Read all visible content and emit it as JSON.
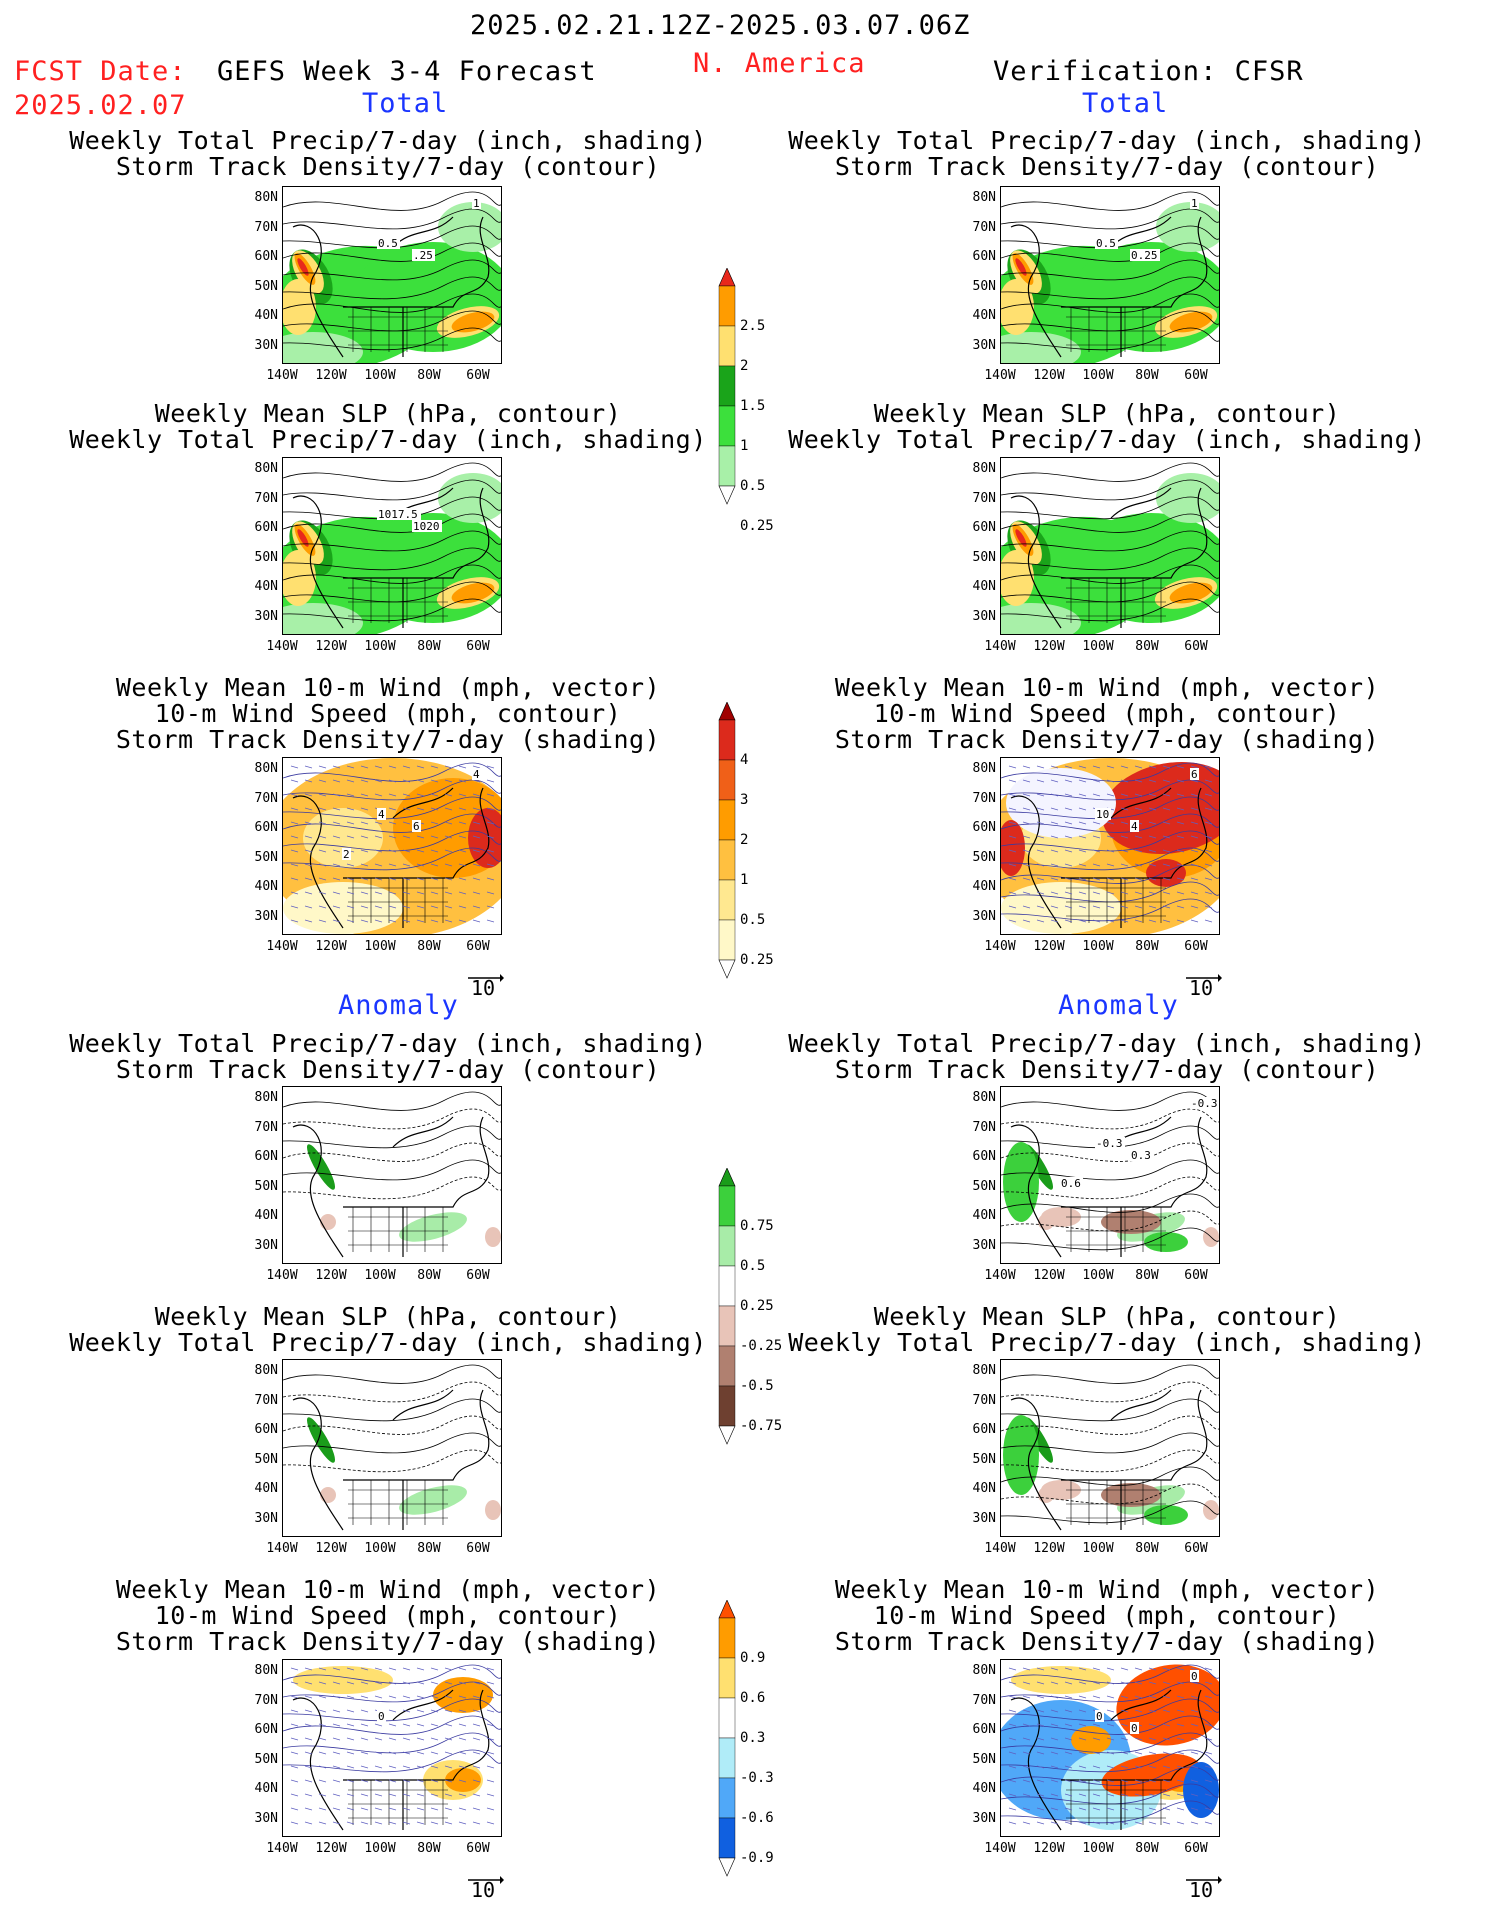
{
  "header": {
    "period": "2025.02.21.12Z-2025.03.07.06Z",
    "region": "N. America",
    "fcst_label": "FCST Date:",
    "fcst_date": "2025.02.07",
    "model": "GEFS Week 3-4 Forecast",
    "verification": "Verification: CFSR"
  },
  "sections": {
    "total": "Total",
    "anomaly": "Anomaly"
  },
  "titles": {
    "precip_storm": [
      "Weekly Total Precip/7-day (inch, shading)",
      "Storm Track Density/7-day (contour)"
    ],
    "slp_precip": [
      "Weekly Mean SLP (hPa, contour)",
      "Weekly Total Precip/7-day (inch, shading)"
    ],
    "wind_storm": [
      "Weekly Mean 10-m Wind (mph, vector)",
      "10-m Wind Speed (mph, contour)",
      "Storm Track Density/7-day (shading)"
    ]
  },
  "axes": {
    "lat": [
      "80N",
      "70N",
      "60N",
      "50N",
      "40N",
      "30N"
    ],
    "lon": [
      "140W",
      "120W",
      "100W",
      "80W",
      "60W"
    ]
  },
  "vector_ref": "10",
  "contour_labels": {
    "p1": [
      "0.5",
      ".25",
      "1"
    ],
    "p2": [
      "0.5",
      "0.25",
      "1"
    ],
    "p3": [
      "1017.5",
      "1020"
    ],
    "p5": [
      "4",
      "6",
      "4",
      "2"
    ],
    "p6": [
      "10",
      "4",
      "6"
    ],
    "p8": [
      "-0.3",
      "0.3",
      "-0.3",
      "0.6"
    ],
    "p11": [
      "0"
    ],
    "p12": [
      "0",
      "0",
      "0"
    ]
  },
  "colorbars": {
    "precip_total": {
      "labels": [
        "2.5",
        "2",
        "1.5",
        "1",
        "0.5",
        "0.25"
      ],
      "colors": [
        "#e8281c",
        "#ff9c00",
        "#ffe070",
        "#1aa41a",
        "#3ce03c",
        "#a8f0a8"
      ]
    },
    "storm_total": {
      "labels": [
        "4",
        "3",
        "2",
        "1",
        "0.5",
        "0.25"
      ],
      "colors": [
        "#a00000",
        "#dc2a1c",
        "#f06018",
        "#ff9c00",
        "#ffc040",
        "#ffe890",
        "#fff8c8"
      ]
    },
    "precip_anom": {
      "labels": [
        "0.75",
        "0.5",
        "0.25",
        "-0.25",
        "-0.5",
        "-0.75"
      ],
      "colors": [
        "#1a9c1a",
        "#3cd03c",
        "#a8eca8",
        "#ffffff",
        "#e8c4b8",
        "#b08070",
        "#6e4030"
      ]
    },
    "storm_anom": {
      "labels": [
        "0.9",
        "0.6",
        "0.3",
        "-0.3",
        "-0.6",
        "-0.9"
      ],
      "colors": [
        "#ff5000",
        "#ff9c00",
        "#ffe070",
        "#ffffff",
        "#b0ecf8",
        "#50a8f8",
        "#1060e0"
      ]
    }
  },
  "colors": {
    "red_text": "#ff2020",
    "blue_text": "#1a35ff"
  }
}
